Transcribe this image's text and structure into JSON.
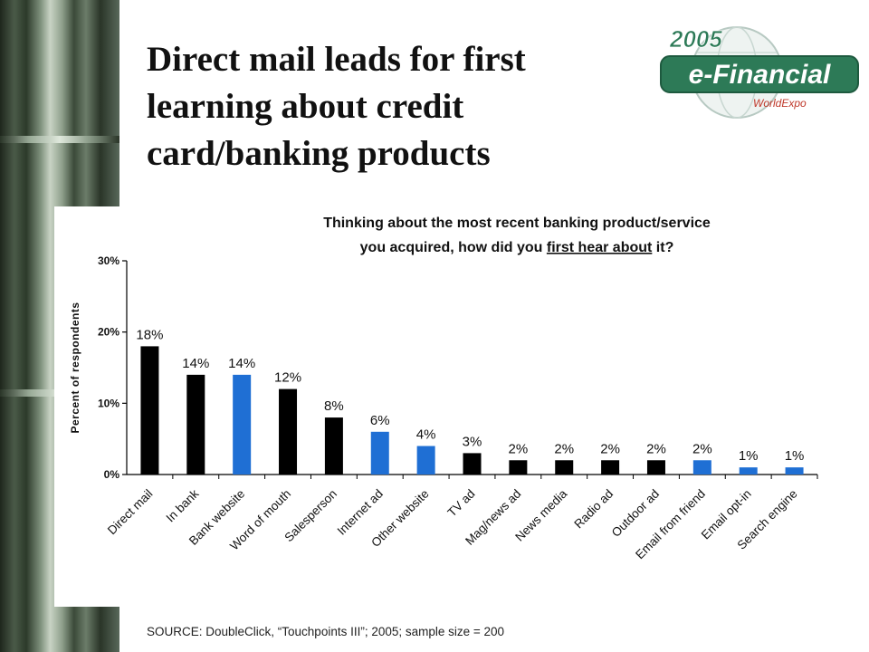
{
  "slide": {
    "title": "Direct mail leads for first learning about credit card/banking products",
    "source": "SOURCE: DoubleClick, “Touchpoints III”; 2005; sample size = 200"
  },
  "logo": {
    "year": "2005",
    "name": "e-Financial",
    "tagline": "WorldExpo",
    "accent": "#2d7a57"
  },
  "chart_data": {
    "type": "bar",
    "title_lines": [
      "Thinking about the most recent banking product/service",
      "you acquired, how did you first hear about it?"
    ],
    "title_underlined_phrase": "first hear about",
    "ylabel": "Percent of respondents",
    "xlabel": "",
    "ylim": [
      0,
      30
    ],
    "yticks": [
      0,
      10,
      20,
      30
    ],
    "ytick_labels": [
      "0%",
      "10%",
      "20%",
      "30%"
    ],
    "grid": false,
    "categories": [
      "Direct mail",
      "In bank",
      "Bank website",
      "Word of mouth",
      "Salesperson",
      "Internet ad",
      "Other website",
      "TV ad",
      "Mag/news ad",
      "News media",
      "Radio ad",
      "Outdoor ad",
      "Email from friend",
      "Email opt-in",
      "Search engine"
    ],
    "values": [
      18,
      14,
      14,
      12,
      8,
      6,
      4,
      3,
      2,
      2,
      2,
      2,
      2,
      1,
      1
    ],
    "data_labels": [
      "18%",
      "14%",
      "14%",
      "12%",
      "8%",
      "6%",
      "4%",
      "3%",
      "2%",
      "2%",
      "2%",
      "2%",
      "2%",
      "1%",
      "1%"
    ],
    "bar_colors": [
      "#000000",
      "#000000",
      "#1f6fd4",
      "#000000",
      "#000000",
      "#1f6fd4",
      "#1f6fd4",
      "#000000",
      "#000000",
      "#000000",
      "#000000",
      "#000000",
      "#1f6fd4",
      "#1f6fd4",
      "#1f6fd4"
    ]
  }
}
